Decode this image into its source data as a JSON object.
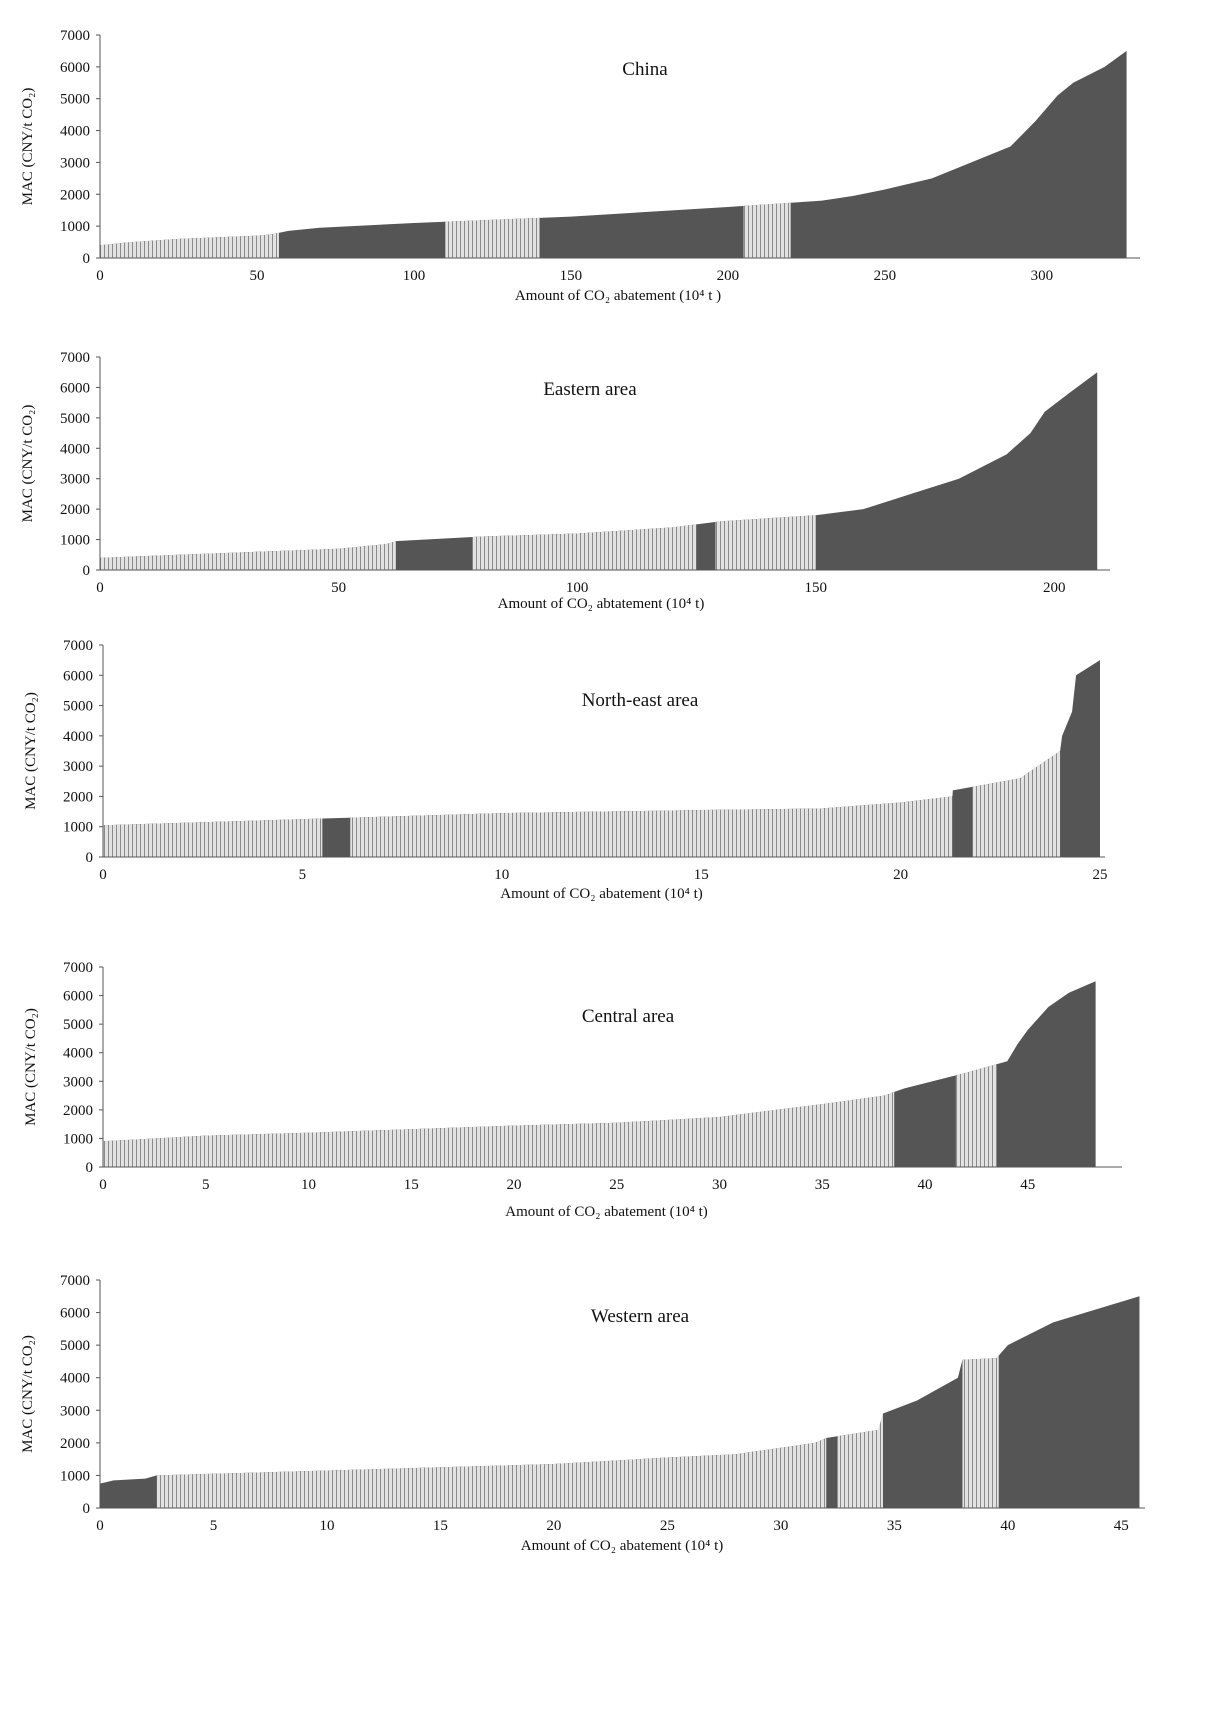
{
  "chart_data": [
    {
      "type": "area",
      "title": "China",
      "xlabel": "Amount of CO₂ abatement (10⁴ t )",
      "ylabel": "MAC (CNY/t CO₂)",
      "xlim": [
        0,
        330
      ],
      "ylim": [
        0,
        7000
      ],
      "xticks": [
        0,
        50,
        100,
        150,
        200,
        250,
        300
      ],
      "yticks": [
        0,
        1000,
        2000,
        3000,
        4000,
        5000,
        6000,
        7000
      ],
      "x": [
        0,
        10,
        25,
        50,
        55,
        60,
        70,
        100,
        150,
        200,
        230,
        240,
        250,
        265,
        280,
        290,
        298,
        305,
        310,
        320,
        327
      ],
      "y": [
        400,
        500,
        600,
        700,
        750,
        850,
        950,
        1100,
        1300,
        1600,
        1800,
        1950,
        2150,
        2500,
        3100,
        3500,
        4300,
        5100,
        5500,
        6000,
        6500
      ],
      "light_bands": [
        [
          0,
          57
        ],
        [
          110,
          140
        ],
        [
          205,
          220
        ]
      ],
      "colors": {
        "fill": "#555555",
        "light": "#d8d8d8"
      }
    },
    {
      "type": "area",
      "title": "Eastern  area",
      "xlabel": "Amount of CO₂ abtatement (10⁴ t)",
      "ylabel": "MAC (CNY/t CO₂)",
      "xlim": [
        0,
        210
      ],
      "ylim": [
        0,
        7000
      ],
      "xticks": [
        0,
        50,
        100,
        150,
        200
      ],
      "yticks": [
        0,
        1000,
        2000,
        3000,
        4000,
        5000,
        6000,
        7000
      ],
      "x": [
        0,
        50,
        60,
        62,
        80,
        100,
        120,
        130,
        150,
        160,
        170,
        180,
        190,
        195,
        198,
        203,
        209
      ],
      "y": [
        400,
        700,
        850,
        950,
        1100,
        1200,
        1400,
        1600,
        1800,
        2000,
        2500,
        3000,
        3800,
        4500,
        5200,
        5800,
        6500
      ],
      "light_bands": [
        [
          0,
          62
        ],
        [
          78,
          125
        ],
        [
          129,
          150
        ]
      ],
      "colors": {
        "fill": "#555555",
        "light": "#d8d8d8"
      }
    },
    {
      "type": "area",
      "title": "North-east area",
      "xlabel": "Amount of CO₂ abatement (10⁴ t)",
      "ylabel": "MAC (CNY/t CO₂)",
      "xlim": [
        0,
        25
      ],
      "ylim": [
        0,
        7000
      ],
      "xticks": [
        0,
        5,
        10,
        15,
        20,
        25
      ],
      "yticks": [
        0,
        1000,
        2000,
        3000,
        4000,
        5000,
        6000,
        7000
      ],
      "x": [
        0,
        5,
        10,
        15,
        18,
        20,
        21.3,
        21.31,
        23,
        24,
        24.05,
        24.3,
        24.4,
        25
      ],
      "y": [
        1050,
        1250,
        1450,
        1550,
        1600,
        1800,
        2000,
        2200,
        2600,
        3500,
        4000,
        4800,
        6000,
        6500
      ],
      "light_bands": [
        [
          0,
          5.5
        ],
        [
          6.2,
          21.3
        ],
        [
          21.8,
          24
        ]
      ],
      "colors": {
        "fill": "#555555",
        "light": "#e4e4e4"
      }
    },
    {
      "type": "area",
      "title": "Central area",
      "xlabel": "Amount of CO₂ abatement (10⁴ t)",
      "ylabel": "MAC (CNY/t CO₂)",
      "xlim": [
        0,
        49
      ],
      "ylim": [
        0,
        7000
      ],
      "xticks": [
        0,
        5,
        10,
        15,
        20,
        25,
        30,
        35,
        40,
        45
      ],
      "yticks": [
        0,
        1000,
        2000,
        3000,
        4000,
        5000,
        6000,
        7000
      ],
      "x": [
        0,
        5,
        10,
        20,
        25,
        30,
        35,
        38,
        39,
        42,
        44,
        44.5,
        45,
        46,
        47,
        48.3
      ],
      "y": [
        900,
        1100,
        1200,
        1450,
        1550,
        1750,
        2200,
        2500,
        2750,
        3300,
        3700,
        4300,
        4800,
        5600,
        6100,
        6500
      ],
      "light_bands": [
        [
          0,
          38.5
        ],
        [
          41.5,
          43.5
        ]
      ],
      "colors": {
        "fill": "#555555",
        "light": "#d8d8d8"
      }
    },
    {
      "type": "area",
      "title": "Western area",
      "xlabel": "Amount of CO₂ abatement (10⁴ t)",
      "ylabel": "MAC (CNY/t CO₂)",
      "xlim": [
        0,
        46
      ],
      "ylim": [
        0,
        7000
      ],
      "xticks": [
        0,
        5,
        10,
        15,
        20,
        25,
        30,
        35,
        40,
        45
      ],
      "yticks": [
        0,
        1000,
        2000,
        3000,
        4000,
        5000,
        6000,
        7000
      ],
      "x": [
        0,
        0.6,
        2,
        2.5,
        5,
        10,
        15,
        20,
        25,
        28,
        30,
        31.5,
        32,
        34.3,
        34.5,
        36,
        37.8,
        38,
        39.5,
        40,
        42,
        45.8
      ],
      "y": [
        750,
        850,
        900,
        1000,
        1050,
        1150,
        1250,
        1350,
        1550,
        1650,
        1850,
        2000,
        2150,
        2400,
        2900,
        3300,
        4000,
        4550,
        4600,
        5000,
        5700,
        6500
      ],
      "light_bands": [
        [
          2.5,
          32
        ],
        [
          32.5,
          34.5
        ],
        [
          38,
          39.6
        ]
      ],
      "colors": {
        "fill": "#555555",
        "light": "#dcdcdc"
      }
    }
  ]
}
